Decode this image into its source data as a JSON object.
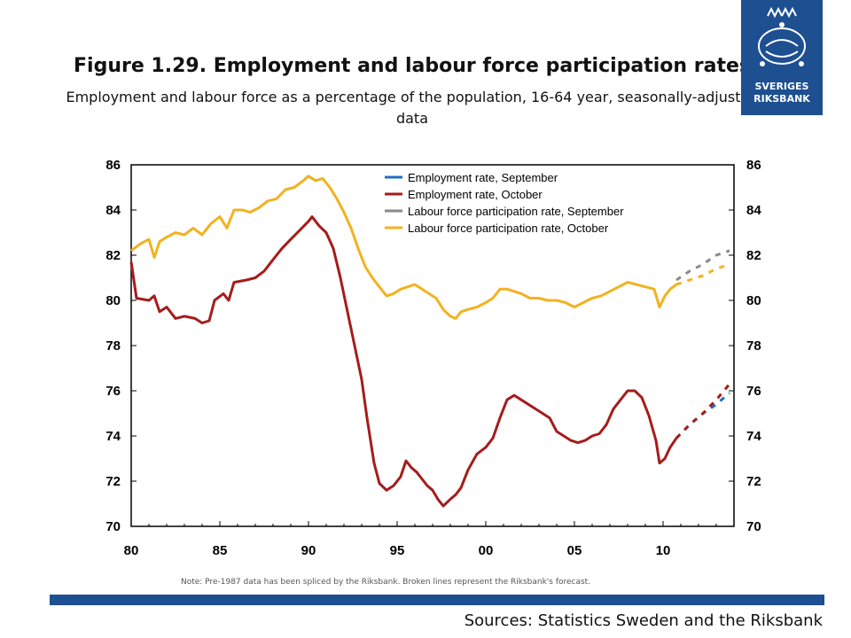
{
  "header": {
    "title": "Figure 1.29. Employment and labour force participation rates",
    "subtitle": "Employment and labour force as a percentage of the population, 16-64 year, seasonally-adjusted data"
  },
  "logo": {
    "line1": "SVERIGES",
    "line2": "RIKSBANK",
    "icon": "crown-emblem-icon"
  },
  "footer": {
    "note": "Note: Pre-1987 data has been spliced by the Riksbank. Broken lines represent the Riksbank's forecast.",
    "sources": "Sources: Statistics Sweden and the Riksbank"
  },
  "colors": {
    "brand": "#1d4f91",
    "employment_sep": "#1f6fc0",
    "employment_oct": "#a51c1c",
    "lfpr_sep": "#8a8a8a",
    "lfpr_oct": "#f2b21f"
  },
  "chart_data": {
    "type": "line",
    "x_ticks": [
      80,
      85,
      90,
      95,
      0,
      5,
      10
    ],
    "x_tick_labels": [
      "80",
      "85",
      "90",
      "95",
      "00",
      "05",
      "10"
    ],
    "xlim": [
      1980,
      2014
    ],
    "ylim": [
      70,
      86
    ],
    "y_ticks": [
      70,
      72,
      74,
      76,
      78,
      80,
      82,
      84,
      86
    ],
    "y_tick_labels": [
      "70",
      "72",
      "74",
      "76",
      "78",
      "80",
      "82",
      "84",
      "86"
    ],
    "legend_position": "top-right",
    "series": [
      {
        "name": "Employment rate, September",
        "style": "dashed",
        "color": "#1f6fc0",
        "x": [
          2010.75,
          2011.5,
          2012.25,
          2013.0,
          2013.75
        ],
        "y": [
          73.9,
          74.5,
          75.0,
          75.4,
          75.9
        ]
      },
      {
        "name": "Employment rate, October",
        "style": "solid-then-dashed",
        "color": "#a51c1c",
        "x": [
          1980.0,
          1980.3,
          1981.0,
          1981.3,
          1981.6,
          1982.0,
          1982.5,
          1983.0,
          1983.6,
          1984.0,
          1984.4,
          1984.7,
          1985.2,
          1985.5,
          1985.8,
          1986.5,
          1987.0,
          1987.5,
          1988.0,
          1988.5,
          1989.0,
          1989.5,
          1990.0,
          1990.2,
          1990.6,
          1991.0,
          1991.4,
          1991.8,
          1992.2,
          1992.6,
          1993.0,
          1993.3,
          1993.7,
          1994.0,
          1994.4,
          1994.8,
          1995.2,
          1995.5,
          1995.8,
          1996.1,
          1996.4,
          1996.7,
          1997.0,
          1997.3,
          1997.6,
          1998.0,
          1998.3,
          1998.6,
          1999.0,
          1999.5,
          2000.0,
          2000.4,
          2000.8,
          2001.2,
          2001.6,
          2002.0,
          2002.4,
          2002.8,
          2003.2,
          2003.6,
          2004.0,
          2004.4,
          2004.8,
          2005.2,
          2005.6,
          2006.0,
          2006.4,
          2006.8,
          2007.2,
          2007.6,
          2008.0,
          2008.4,
          2008.8,
          2009.2,
          2009.6,
          2009.8,
          2010.1,
          2010.4,
          2010.75,
          2011.5,
          2012.25,
          2013.0,
          2013.75
        ],
        "y": [
          81.7,
          80.1,
          80.0,
          80.2,
          79.5,
          79.7,
          79.2,
          79.3,
          79.2,
          79.0,
          79.1,
          80.0,
          80.3,
          80.0,
          80.8,
          80.9,
          81.0,
          81.3,
          81.8,
          82.3,
          82.7,
          83.1,
          83.5,
          83.7,
          83.3,
          83.0,
          82.3,
          81.0,
          79.5,
          78.0,
          76.5,
          74.8,
          72.8,
          71.9,
          71.6,
          71.8,
          72.2,
          72.9,
          72.6,
          72.4,
          72.1,
          71.8,
          71.6,
          71.2,
          70.9,
          71.2,
          71.4,
          71.7,
          72.5,
          73.2,
          73.5,
          73.9,
          74.8,
          75.6,
          75.8,
          75.6,
          75.4,
          75.2,
          75.0,
          74.8,
          74.2,
          74.0,
          73.8,
          73.7,
          73.8,
          74.0,
          74.1,
          74.5,
          75.2,
          75.6,
          76.0,
          76.0,
          75.7,
          74.9,
          73.8,
          72.8,
          73.0,
          73.5,
          73.9,
          74.5,
          75.0,
          75.6,
          76.3
        ]
      },
      {
        "name": "Labour force participation rate, September",
        "style": "dashed",
        "color": "#8a8a8a",
        "x": [
          2010.75,
          2011.5,
          2012.25,
          2013.0,
          2013.75
        ],
        "y": [
          80.9,
          81.3,
          81.6,
          82.0,
          82.2
        ]
      },
      {
        "name": "Labour force participation rate, October",
        "style": "solid-then-dashed",
        "color": "#f2b21f",
        "x": [
          1980.0,
          1980.5,
          1981.0,
          1981.3,
          1981.6,
          1982.0,
          1982.5,
          1983.0,
          1983.5,
          1984.0,
          1984.5,
          1985.0,
          1985.4,
          1985.8,
          1986.3,
          1986.7,
          1987.2,
          1987.7,
          1988.2,
          1988.7,
          1989.2,
          1989.7,
          1990.0,
          1990.4,
          1990.8,
          1991.2,
          1991.6,
          1992.0,
          1992.4,
          1992.8,
          1993.2,
          1993.6,
          1994.0,
          1994.4,
          1994.8,
          1995.2,
          1995.6,
          1996.0,
          1996.4,
          1996.8,
          1997.2,
          1997.6,
          1998.0,
          1998.3,
          1998.6,
          1999.0,
          1999.5,
          2000.0,
          2000.4,
          2000.8,
          2001.2,
          2001.6,
          2002.0,
          2002.5,
          2003.0,
          2003.5,
          2004.0,
          2004.5,
          2005.0,
          2005.5,
          2006.0,
          2006.5,
          2007.0,
          2007.5,
          2008.0,
          2008.5,
          2009.0,
          2009.5,
          2009.8,
          2010.1,
          2010.4,
          2010.75,
          2011.5,
          2012.25,
          2013.0,
          2013.75
        ],
        "y": [
          82.2,
          82.5,
          82.7,
          81.9,
          82.6,
          82.8,
          83.0,
          82.9,
          83.2,
          82.9,
          83.4,
          83.7,
          83.2,
          84.0,
          84.0,
          83.9,
          84.1,
          84.4,
          84.5,
          84.9,
          85.0,
          85.3,
          85.5,
          85.3,
          85.4,
          85.0,
          84.5,
          83.9,
          83.2,
          82.3,
          81.5,
          81.0,
          80.6,
          80.2,
          80.3,
          80.5,
          80.6,
          80.7,
          80.5,
          80.3,
          80.1,
          79.6,
          79.3,
          79.2,
          79.5,
          79.6,
          79.7,
          79.9,
          80.1,
          80.5,
          80.5,
          80.4,
          80.3,
          80.1,
          80.1,
          80.0,
          80.0,
          79.9,
          79.7,
          79.9,
          80.1,
          80.2,
          80.4,
          80.6,
          80.8,
          80.7,
          80.6,
          80.5,
          79.7,
          80.2,
          80.5,
          80.7,
          80.9,
          81.1,
          81.4,
          81.6
        ]
      }
    ]
  }
}
